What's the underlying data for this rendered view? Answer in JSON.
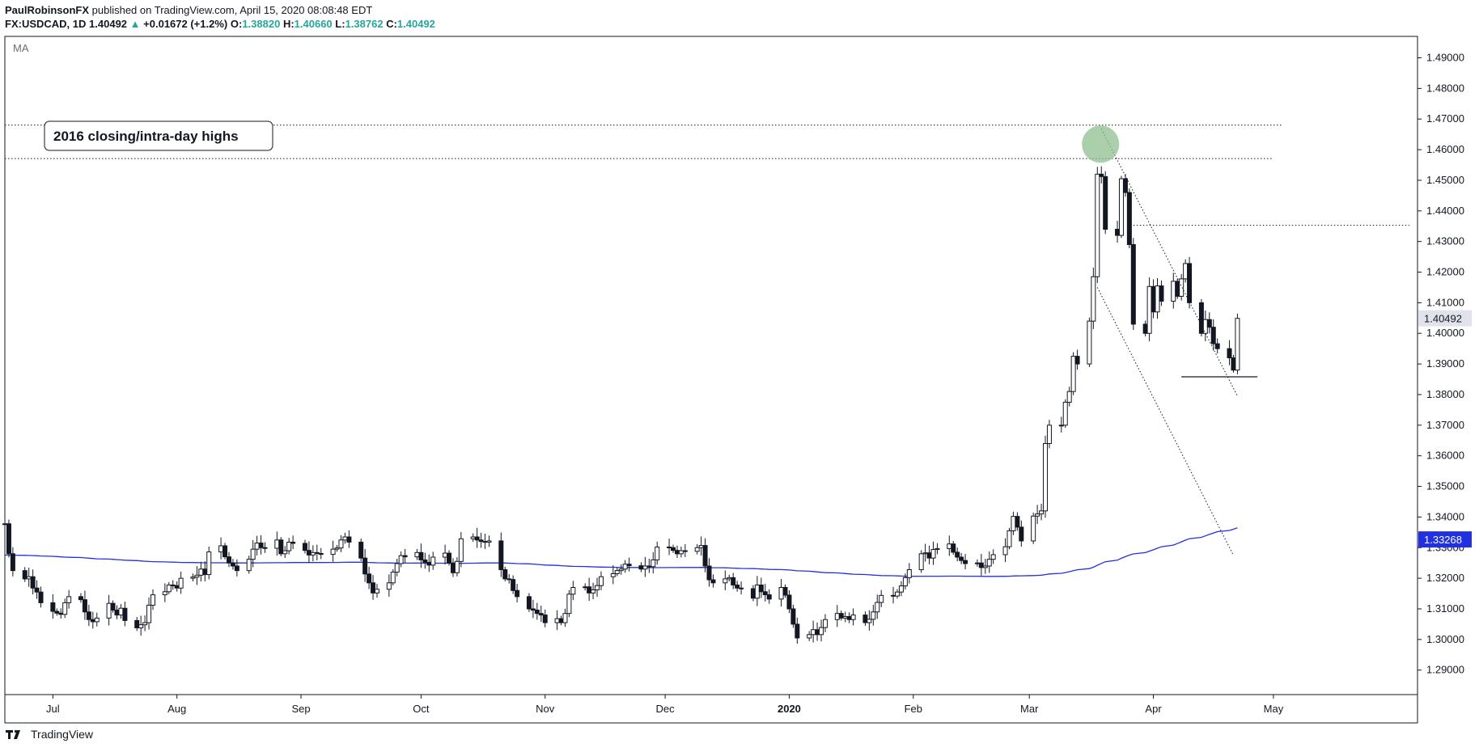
{
  "header": {
    "author": "PaulRobinsonFX",
    "published": "published on TradingView.com, April 15, 2020 08:08:48 EDT",
    "symbol": "FX:USDCAD, 1D",
    "last": "1.40492",
    "arrow": "▲",
    "change": "+0.01672 (+1.2%)",
    "o_label": "O:",
    "o_val": "1.38820",
    "h_label": "H:",
    "h_val": "1.40660",
    "l_label": "L:",
    "l_val": "1.38762",
    "c_label": "C:",
    "c_val": "1.40492"
  },
  "footer": {
    "brand": "TradingView"
  },
  "chart_data": {
    "type": "candlestick",
    "indicator_label": "MA",
    "annotation": "2016 closing/intra-day highs",
    "ylim": [
      1.282,
      1.497
    ],
    "y_ticks": [
      "1.49000",
      "1.48000",
      "1.47000",
      "1.46000",
      "1.45000",
      "1.44000",
      "1.43000",
      "1.42000",
      "1.41000",
      "1.40000",
      "1.39000",
      "1.38000",
      "1.37000",
      "1.36000",
      "1.35000",
      "1.34000",
      "1.33000",
      "1.32000",
      "1.31000",
      "1.30000",
      "1.29000"
    ],
    "x_labels": [
      {
        "label": "Jul",
        "date": "2019-07-01"
      },
      {
        "label": "Aug",
        "date": "2019-08-01"
      },
      {
        "label": "Sep",
        "date": "2019-09-01"
      },
      {
        "label": "Oct",
        "date": "2019-10-01"
      },
      {
        "label": "Nov",
        "date": "2019-11-01"
      },
      {
        "label": "Dec",
        "date": "2019-12-01"
      },
      {
        "label": "2020",
        "date": "2020-01-01",
        "bold": true
      },
      {
        "label": "Feb",
        "date": "2020-02-01"
      },
      {
        "label": "Mar",
        "date": "2020-03-01"
      },
      {
        "label": "Apr",
        "date": "2020-04-01"
      },
      {
        "label": "May",
        "date": "2020-05-01"
      }
    ],
    "x_range": [
      "2019-06-19",
      "2020-06-06"
    ],
    "price_badges": [
      {
        "value": 1.40492,
        "text": "1.40492",
        "bg": "#e0e3eb",
        "fg": "#131722"
      },
      {
        "value": 1.33268,
        "text": "1.33268",
        "bg": "#2130e0",
        "fg": "#ffffff"
      }
    ],
    "candles": {
      "start": "2019-06-19",
      "open": 1.3378,
      "closes": [
        1.3378,
        1.328,
        1.3225,
        1.3198,
        1.3205,
        1.3168,
        1.3155,
        1.312,
        1.3092,
        1.3086,
        1.3082,
        1.312,
        1.314,
        1.313,
        1.309,
        1.3065,
        1.3058,
        1.307,
        1.3118,
        1.3096,
        1.308,
        1.3102,
        1.3062,
        1.3038,
        1.3048,
        1.3055,
        1.3112,
        1.3146,
        1.3156,
        1.3178,
        1.3176,
        1.3168,
        1.32,
        1.3204,
        1.321,
        1.323,
        1.3212,
        1.3286,
        1.3306,
        1.327,
        1.325,
        1.324,
        1.3225,
        1.3262,
        1.3295,
        1.3315,
        1.33,
        1.3298,
        1.3325,
        1.328,
        1.329,
        1.3318,
        1.3314,
        1.3291,
        1.3276,
        1.3284,
        1.3281,
        1.3278,
        1.3295,
        1.3299,
        1.3325,
        1.3335,
        1.3318,
        1.3266,
        1.3214,
        1.3185,
        1.3152,
        1.3164,
        1.3185,
        1.322,
        1.3248,
        1.3274,
        1.327,
        1.3284,
        1.326,
        1.3252,
        1.3243,
        1.3269,
        1.3282,
        1.325,
        1.3218,
        1.3255,
        1.3329,
        1.3335,
        1.3325,
        1.332,
        1.3318,
        1.3322,
        1.3228,
        1.3198,
        1.3196,
        1.316,
        1.314,
        1.31,
        1.3096,
        1.3085,
        1.308,
        1.3055,
        1.3068,
        1.3055,
        1.3085,
        1.3148,
        1.317,
        1.3172,
        1.3152,
        1.3162,
        1.3176,
        1.3205,
        1.3215,
        1.3225,
        1.323,
        1.3246,
        1.3241,
        1.323,
        1.324,
        1.3238,
        1.326,
        1.3302,
        1.33,
        1.3291,
        1.328,
        1.329,
        1.3288,
        1.33,
        1.3307,
        1.324,
        1.3195,
        1.3185,
        1.3198,
        1.3202,
        1.3178,
        1.3168,
        1.3166,
        1.3135,
        1.3178,
        1.3156,
        1.3146,
        1.3132,
        1.317,
        1.3145,
        1.31,
        1.305,
        1.3005,
        1.3016,
        1.3032,
        1.3016,
        1.3039,
        1.3065,
        1.3085,
        1.307,
        1.3075,
        1.3065,
        1.308,
        1.3055,
        1.3066,
        1.309,
        1.3121,
        1.3144,
        1.3142,
        1.3155,
        1.3175,
        1.3202,
        1.3228,
        1.328,
        1.3283,
        1.3266,
        1.3294,
        1.3297,
        1.3312,
        1.3285,
        1.3269,
        1.3258,
        1.3248,
        1.325,
        1.3235,
        1.324,
        1.3262,
        1.3277,
        1.3303,
        1.3355,
        1.3402,
        1.3367,
        1.3322,
        1.3403,
        1.341,
        1.342,
        1.364,
        1.37,
        1.37,
        1.3775,
        1.381,
        1.3925,
        1.39,
        1.404,
        1.4185,
        1.452,
        1.4512,
        1.434,
        1.432,
        1.4505,
        1.446,
        1.429,
        1.403,
        1.4,
        1.4153,
        1.407,
        1.4155,
        1.4105,
        1.417,
        1.4121,
        1.4178,
        1.4228,
        1.41,
        1.4,
        1.4045,
        1.402,
        1.3966,
        1.395,
        1.392,
        1.388,
        1.4049
      ]
    }
  }
}
